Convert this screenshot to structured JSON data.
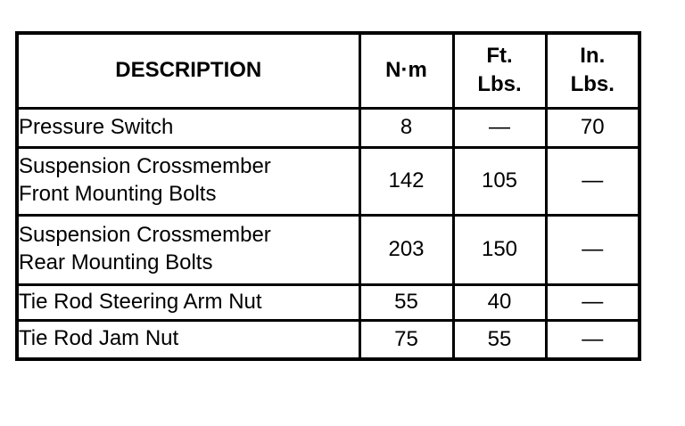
{
  "table": {
    "title_semantic": "torque-specifications-table",
    "headers": {
      "description": "DESCRIPTION",
      "nm": "N·m",
      "ft_lbs": "Ft.\nLbs.",
      "in_lbs": "In.\nLbs."
    },
    "empty_cell_glyph": "—",
    "rows": [
      [
        "Pressure Switch",
        "8",
        "—",
        "70"
      ],
      [
        "Suspension Crossmember\nFront Mounting Bolts",
        "142",
        "105",
        "—"
      ],
      [
        "Suspension Crossmember\nRear Mounting Bolts",
        "203",
        "150",
        "—"
      ],
      [
        "Tie Rod Steering Arm Nut",
        "55",
        "40",
        "—"
      ],
      [
        "Tie Rod Jam Nut",
        "75",
        "55",
        "—"
      ]
    ],
    "colors": {
      "border": "#000000",
      "background": "#ffffff",
      "text": "#000000"
    }
  }
}
